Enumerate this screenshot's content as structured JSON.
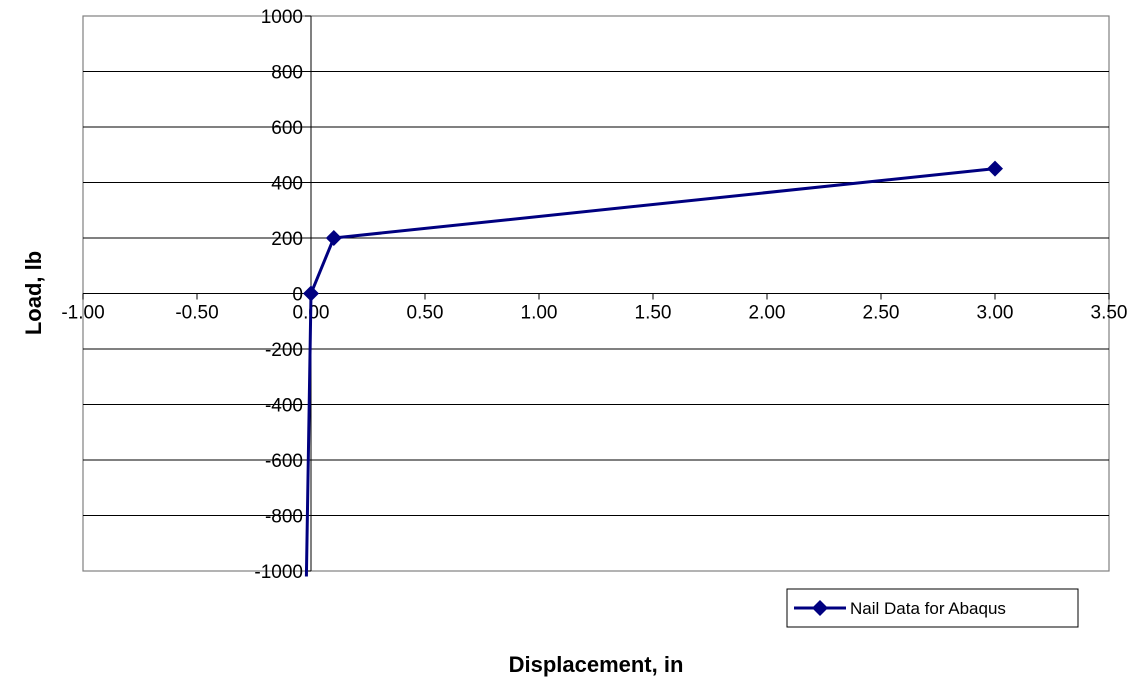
{
  "chart_data": {
    "type": "scatter",
    "title": "",
    "xlabel": "Displacement, in",
    "ylabel": "Load, lb",
    "xlim": [
      -1.0,
      3.5
    ],
    "ylim": [
      -1000,
      1000
    ],
    "x_ticks": [
      "-1.00",
      "-0.50",
      "0.00",
      "0.50",
      "1.00",
      "1.50",
      "2.00",
      "2.50",
      "3.00",
      "3.50"
    ],
    "y_ticks": [
      "1000",
      "800",
      "600",
      "400",
      "200",
      "0",
      "-200",
      "-400",
      "-600",
      "-800",
      "-1000"
    ],
    "grid": "horizontal",
    "legend_position": "bottom-right",
    "series": [
      {
        "name": "Nail Data for Abaqus",
        "color": "#000080",
        "marker": "diamond",
        "line": true,
        "points": [
          {
            "x": -0.02,
            "y": -1050
          },
          {
            "x": 0.0,
            "y": 0
          },
          {
            "x": 0.1,
            "y": 200
          },
          {
            "x": 3.0,
            "y": 450
          }
        ]
      }
    ]
  }
}
